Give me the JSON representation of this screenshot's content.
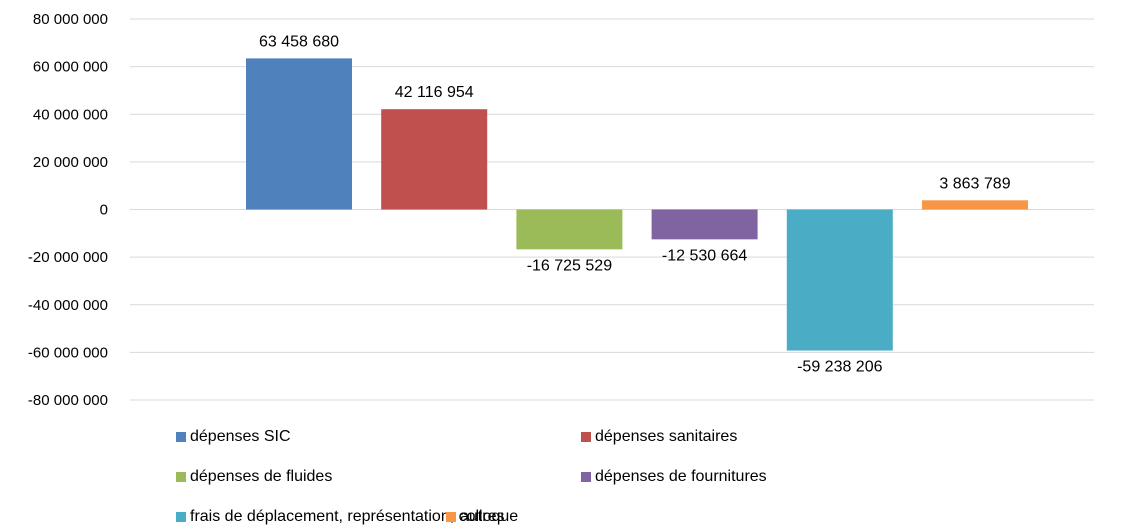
{
  "chart_data": {
    "type": "bar",
    "ylim": [
      -80000000,
      80000000
    ],
    "y_ticks": [
      {
        "value": 80000000,
        "label": "80 000 000"
      },
      {
        "value": 60000000,
        "label": "60 000 000"
      },
      {
        "value": 40000000,
        "label": "40 000 000"
      },
      {
        "value": 20000000,
        "label": "20 000 000"
      },
      {
        "value": 0,
        "label": "0"
      },
      {
        "value": -20000000,
        "label": "-20 000 000"
      },
      {
        "value": -40000000,
        "label": "-40 000 000"
      },
      {
        "value": -60000000,
        "label": "-60 000 000"
      },
      {
        "value": -80000000,
        "label": "-80 000 000"
      }
    ],
    "grid": true,
    "legend_position": "bottom",
    "series": [
      {
        "name": "dépenses SIC",
        "value": 63458680,
        "label": "63 458 680",
        "color": "#4F81BD"
      },
      {
        "name": "dépenses sanitaires",
        "value": 42116954,
        "label": "42 116 954",
        "color": "#C0504D"
      },
      {
        "name": "dépenses de fluides",
        "value": -16725529,
        "label": "-16 725 529",
        "color": "#9BBB59"
      },
      {
        "name": "dépenses de fournitures",
        "value": -12530664,
        "label": "-12 530 664",
        "color": "#8064A2"
      },
      {
        "name": "frais de déplacement, représentation, colloque",
        "value": -59238206,
        "label": "-59 238 206",
        "color": "#4BACC6"
      },
      {
        "name": "autres",
        "value": 3863789,
        "label": "3 863 789",
        "color": "#F79646"
      }
    ]
  }
}
